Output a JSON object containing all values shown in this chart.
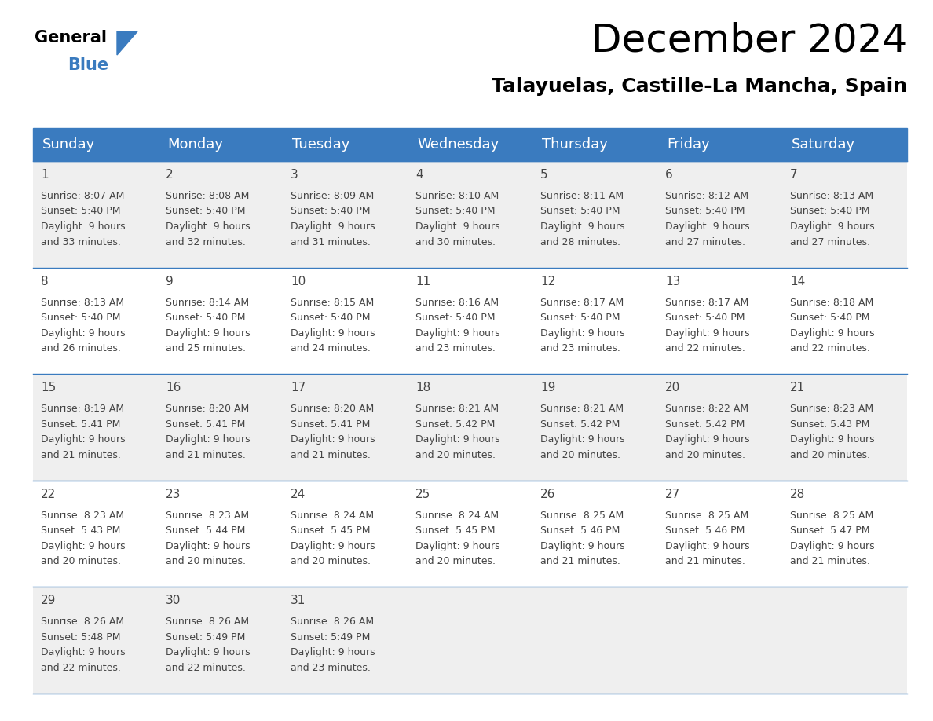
{
  "title": "December 2024",
  "subtitle": "Talayuelas, Castille-La Mancha, Spain",
  "header_color": "#3A7BBF",
  "header_text_color": "#FFFFFF",
  "day_names": [
    "Sunday",
    "Monday",
    "Tuesday",
    "Wednesday",
    "Thursday",
    "Friday",
    "Saturday"
  ],
  "bg_color": "#FFFFFF",
  "cell_bg_light": "#EFEFEF",
  "cell_bg_white": "#FFFFFF",
  "divider_color": "#3A7BBF",
  "text_color": "#444444",
  "days": [
    {
      "day": 1,
      "col": 0,
      "row": 0,
      "sunrise": "8:07 AM",
      "sunset": "5:40 PM",
      "daylight_hours": 9,
      "daylight_mins": "33"
    },
    {
      "day": 2,
      "col": 1,
      "row": 0,
      "sunrise": "8:08 AM",
      "sunset": "5:40 PM",
      "daylight_hours": 9,
      "daylight_mins": "32"
    },
    {
      "day": 3,
      "col": 2,
      "row": 0,
      "sunrise": "8:09 AM",
      "sunset": "5:40 PM",
      "daylight_hours": 9,
      "daylight_mins": "31"
    },
    {
      "day": 4,
      "col": 3,
      "row": 0,
      "sunrise": "8:10 AM",
      "sunset": "5:40 PM",
      "daylight_hours": 9,
      "daylight_mins": "30"
    },
    {
      "day": 5,
      "col": 4,
      "row": 0,
      "sunrise": "8:11 AM",
      "sunset": "5:40 PM",
      "daylight_hours": 9,
      "daylight_mins": "28"
    },
    {
      "day": 6,
      "col": 5,
      "row": 0,
      "sunrise": "8:12 AM",
      "sunset": "5:40 PM",
      "daylight_hours": 9,
      "daylight_mins": "27"
    },
    {
      "day": 7,
      "col": 6,
      "row": 0,
      "sunrise": "8:13 AM",
      "sunset": "5:40 PM",
      "daylight_hours": 9,
      "daylight_mins": "27"
    },
    {
      "day": 8,
      "col": 0,
      "row": 1,
      "sunrise": "8:13 AM",
      "sunset": "5:40 PM",
      "daylight_hours": 9,
      "daylight_mins": "26"
    },
    {
      "day": 9,
      "col": 1,
      "row": 1,
      "sunrise": "8:14 AM",
      "sunset": "5:40 PM",
      "daylight_hours": 9,
      "daylight_mins": "25"
    },
    {
      "day": 10,
      "col": 2,
      "row": 1,
      "sunrise": "8:15 AM",
      "sunset": "5:40 PM",
      "daylight_hours": 9,
      "daylight_mins": "24"
    },
    {
      "day": 11,
      "col": 3,
      "row": 1,
      "sunrise": "8:16 AM",
      "sunset": "5:40 PM",
      "daylight_hours": 9,
      "daylight_mins": "23"
    },
    {
      "day": 12,
      "col": 4,
      "row": 1,
      "sunrise": "8:17 AM",
      "sunset": "5:40 PM",
      "daylight_hours": 9,
      "daylight_mins": "23"
    },
    {
      "day": 13,
      "col": 5,
      "row": 1,
      "sunrise": "8:17 AM",
      "sunset": "5:40 PM",
      "daylight_hours": 9,
      "daylight_mins": "22"
    },
    {
      "day": 14,
      "col": 6,
      "row": 1,
      "sunrise": "8:18 AM",
      "sunset": "5:40 PM",
      "daylight_hours": 9,
      "daylight_mins": "22"
    },
    {
      "day": 15,
      "col": 0,
      "row": 2,
      "sunrise": "8:19 AM",
      "sunset": "5:41 PM",
      "daylight_hours": 9,
      "daylight_mins": "21"
    },
    {
      "day": 16,
      "col": 1,
      "row": 2,
      "sunrise": "8:20 AM",
      "sunset": "5:41 PM",
      "daylight_hours": 9,
      "daylight_mins": "21"
    },
    {
      "day": 17,
      "col": 2,
      "row": 2,
      "sunrise": "8:20 AM",
      "sunset": "5:41 PM",
      "daylight_hours": 9,
      "daylight_mins": "21"
    },
    {
      "day": 18,
      "col": 3,
      "row": 2,
      "sunrise": "8:21 AM",
      "sunset": "5:42 PM",
      "daylight_hours": 9,
      "daylight_mins": "20"
    },
    {
      "day": 19,
      "col": 4,
      "row": 2,
      "sunrise": "8:21 AM",
      "sunset": "5:42 PM",
      "daylight_hours": 9,
      "daylight_mins": "20"
    },
    {
      "day": 20,
      "col": 5,
      "row": 2,
      "sunrise": "8:22 AM",
      "sunset": "5:42 PM",
      "daylight_hours": 9,
      "daylight_mins": "20"
    },
    {
      "day": 21,
      "col": 6,
      "row": 2,
      "sunrise": "8:23 AM",
      "sunset": "5:43 PM",
      "daylight_hours": 9,
      "daylight_mins": "20"
    },
    {
      "day": 22,
      "col": 0,
      "row": 3,
      "sunrise": "8:23 AM",
      "sunset": "5:43 PM",
      "daylight_hours": 9,
      "daylight_mins": "20"
    },
    {
      "day": 23,
      "col": 1,
      "row": 3,
      "sunrise": "8:23 AM",
      "sunset": "5:44 PM",
      "daylight_hours": 9,
      "daylight_mins": "20"
    },
    {
      "day": 24,
      "col": 2,
      "row": 3,
      "sunrise": "8:24 AM",
      "sunset": "5:45 PM",
      "daylight_hours": 9,
      "daylight_mins": "20"
    },
    {
      "day": 25,
      "col": 3,
      "row": 3,
      "sunrise": "8:24 AM",
      "sunset": "5:45 PM",
      "daylight_hours": 9,
      "daylight_mins": "20"
    },
    {
      "day": 26,
      "col": 4,
      "row": 3,
      "sunrise": "8:25 AM",
      "sunset": "5:46 PM",
      "daylight_hours": 9,
      "daylight_mins": "21"
    },
    {
      "day": 27,
      "col": 5,
      "row": 3,
      "sunrise": "8:25 AM",
      "sunset": "5:46 PM",
      "daylight_hours": 9,
      "daylight_mins": "21"
    },
    {
      "day": 28,
      "col": 6,
      "row": 3,
      "sunrise": "8:25 AM",
      "sunset": "5:47 PM",
      "daylight_hours": 9,
      "daylight_mins": "21"
    },
    {
      "day": 29,
      "col": 0,
      "row": 4,
      "sunrise": "8:26 AM",
      "sunset": "5:48 PM",
      "daylight_hours": 9,
      "daylight_mins": "22"
    },
    {
      "day": 30,
      "col": 1,
      "row": 4,
      "sunrise": "8:26 AM",
      "sunset": "5:49 PM",
      "daylight_hours": 9,
      "daylight_mins": "22"
    },
    {
      "day": 31,
      "col": 2,
      "row": 4,
      "sunrise": "8:26 AM",
      "sunset": "5:49 PM",
      "daylight_hours": 9,
      "daylight_mins": "23"
    }
  ],
  "num_rows": 5,
  "num_cols": 7,
  "title_fontsize": 36,
  "subtitle_fontsize": 18,
  "header_fontsize": 13,
  "day_num_fontsize": 11,
  "cell_text_fontsize": 9
}
